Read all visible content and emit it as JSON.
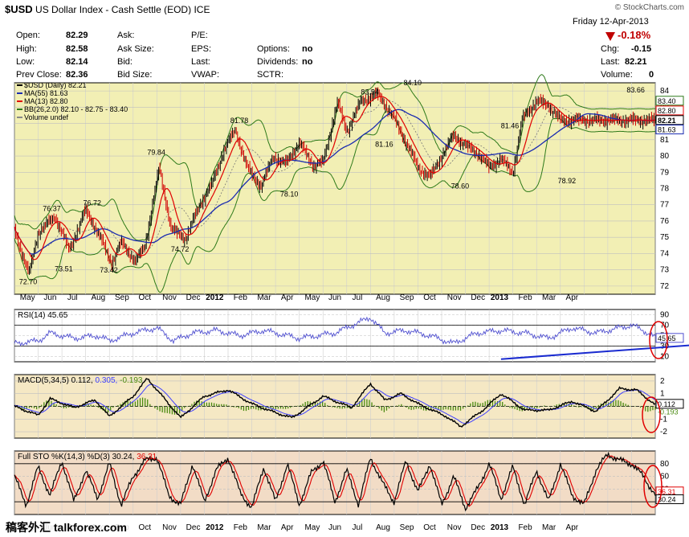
{
  "header": {
    "symbol": "$USD",
    "name": "US Dollar Index - Cash Settle (EOD)",
    "exchange": "ICE",
    "brand": "© StockCharts.com",
    "date": "Friday  12-Apr-2013",
    "change_pct": "-0.18%"
  },
  "quote": {
    "open_label": "Open:",
    "open": "82.29",
    "high_label": "High:",
    "high": "82.58",
    "low_label": "Low:",
    "low": "82.14",
    "prev_label": "Prev Close:",
    "prev": "82.36",
    "ask_label": "Ask:",
    "ask": "",
    "asksize_label": "Ask Size:",
    "asksize": "",
    "bid_label": "Bid:",
    "bid": "",
    "bidsize_label": "Bid Size:",
    "bidsize": "",
    "pe_label": "P/E:",
    "pe": "",
    "eps_label": "EPS:",
    "eps": "",
    "last2_label": "Last:",
    "last2": "",
    "vwap_label": "VWAP:",
    "vwap": "",
    "options_label": "Options:",
    "options": "no",
    "dividends_label": "Dividends:",
    "dividends": "no",
    "sctr_label": "SCTR:",
    "sctr": "",
    "chg_label": "Chg:",
    "chg": "-0.15",
    "last_label": "Last:",
    "last": "82.21",
    "volume_label": "Volume:",
    "volume": "0"
  },
  "watermark": "稿客外汇 talkforex.com",
  "colors": {
    "price_bg": "#f2efb4",
    "rsi_bg": "#ffffff",
    "macd_bg": "#f5e8c4",
    "sto_bg": "#f2dcc6",
    "ma55": "#1a2bb0",
    "ma13": "#e00000",
    "bb": "#2e7a1a",
    "bb_mid": "#777777",
    "bar_up": "#000000",
    "bar_down": "#d00000",
    "rsi": "#5050d0",
    "macd": "#000000",
    "macd_signal": "#4040ff",
    "macd_hist": "#4a8a10",
    "sto_k": "#000000",
    "sto_d": "#e00000",
    "trend": "#1a2bd0",
    "highlight": "#e00000"
  },
  "chart_data": [
    {
      "type": "line",
      "panel": "price",
      "legend": [
        "$USD (Daily) 82.21",
        "MA(55) 81.63",
        "MA(13) 82.80",
        "BB(26,2.0) 82.10 - 82.75 - 83.40",
        "Volume undef"
      ],
      "series_names": [
        "$USD",
        "MA(55)",
        "MA(13)",
        "BB(26,2.0)"
      ],
      "x_labels": [
        "May",
        "Jun",
        "Jul",
        "Aug",
        "Sep",
        "Oct",
        "Nov",
        "Dec",
        "2012",
        "Feb",
        "Mar",
        "Apr",
        "May",
        "Jun",
        "Jul",
        "Aug",
        "Sep",
        "Oct",
        "Nov",
        "Dec",
        "2013",
        "Feb",
        "Mar",
        "Apr"
      ],
      "ylim": [
        71.5,
        84.5
      ],
      "y_ticks": [
        72,
        73,
        74,
        75,
        76,
        77,
        78,
        79,
        80,
        81,
        82,
        83,
        84
      ],
      "anchors": {
        "x": [
          0,
          0.6,
          1,
          1.7,
          2.3,
          3,
          3.6,
          4.1,
          4.5,
          5.1,
          5.5,
          6.1,
          6.6,
          7.2,
          7.8,
          8.3,
          8.8,
          9.3,
          9.8,
          10.4,
          10.9,
          11.4,
          12,
          12.6,
          13,
          13.6,
          14,
          14.6,
          15.3,
          16,
          16.6,
          17,
          17.5,
          18,
          18.5,
          19,
          19.5,
          20,
          20.5,
          21,
          21.4,
          22,
          22.5,
          23,
          23.4
        ],
        "close": [
          75.5,
          72.7,
          75.3,
          76.3,
          74.2,
          76.7,
          75,
          73.4,
          74.7,
          73.5,
          74.5,
          79.3,
          75.5,
          74.9,
          77,
          78.2,
          80.3,
          81.6,
          79.3,
          78.1,
          80,
          79.5,
          80.8,
          79.4,
          79.6,
          83.3,
          81.5,
          83.4,
          83.8,
          82.3,
          80.5,
          79.3,
          78.7,
          80,
          81.3,
          80.6,
          80.2,
          79.3,
          79.8,
          79,
          82.3,
          83.4,
          83.1,
          82.2,
          82.2
        ]
      },
      "annotations": [
        {
          "x": 0.6,
          "text": "72.70",
          "pos": "below"
        },
        {
          "x": 1.6,
          "text": "76.37",
          "pos": "above"
        },
        {
          "x": 2.1,
          "text": "73.51",
          "pos": "below"
        },
        {
          "x": 3.3,
          "text": "76.72",
          "pos": "above"
        },
        {
          "x": 4.0,
          "text": "73.42",
          "pos": "below"
        },
        {
          "x": 6.0,
          "text": "79.84",
          "pos": "above"
        },
        {
          "x": 7.0,
          "text": "74.72",
          "pos": "below"
        },
        {
          "x": 9.5,
          "text": "81.78",
          "pos": "above"
        },
        {
          "x": 11.6,
          "text": "78.10",
          "pos": "below"
        },
        {
          "x": 15.0,
          "text": "83.54",
          "pos": "above"
        },
        {
          "x": 15.6,
          "text": "81.16",
          "pos": "below"
        },
        {
          "x": 16.8,
          "text": "84.10",
          "pos": "above"
        },
        {
          "x": 18.8,
          "text": "78.60",
          "pos": "below"
        },
        {
          "x": 20.9,
          "text": "81.46",
          "pos": "above"
        },
        {
          "x": 23.3,
          "text": "78.92",
          "pos": "below"
        },
        {
          "x": 26.2,
          "text": "83.66",
          "pos": "above"
        }
      ],
      "right_labels": [
        {
          "value": 83.4,
          "text": "83.40"
        },
        {
          "value": 82.8,
          "text": "82.80"
        },
        {
          "value": 82.21,
          "text": "82.21"
        },
        {
          "value": 81.63,
          "text": "81.63"
        }
      ]
    },
    {
      "type": "line",
      "panel": "rsi",
      "legend": "RSI(14) 45.65",
      "series_names": [
        "RSI(14)"
      ],
      "ylim": [
        0,
        100
      ],
      "y_ticks": [
        10,
        30,
        50,
        70,
        90
      ],
      "current": "45.65",
      "anchors": {
        "x": [
          0,
          1,
          1.5,
          2.5,
          3.5,
          4,
          5,
          6,
          6.7,
          7.5,
          8.5,
          9.5,
          10.5,
          12,
          13.5,
          15,
          15.6,
          16.5,
          17.5,
          18.5,
          19.5,
          20.5,
          21.5,
          22.5,
          23.5,
          24.5,
          25.5,
          26,
          26.5,
          27
        ],
        "value": [
          35,
          40,
          55,
          45,
          50,
          40,
          55,
          65,
          40,
          55,
          60,
          50,
          60,
          45,
          55,
          85,
          55,
          60,
          50,
          35,
          55,
          60,
          55,
          45,
          65,
          55,
          65,
          70,
          60,
          45.65
        ]
      }
    },
    {
      "type": "line",
      "panel": "macd",
      "legend": "MACD(5,34,5) 0.112, 0.305, -0.193",
      "series_names": [
        "MACD(5,34,5)",
        "signal",
        "histogram"
      ],
      "values_text": [
        "0.112",
        "0.305",
        "-0.193"
      ],
      "ylim": [
        -2.5,
        2.5
      ],
      "y_ticks": [
        -2,
        -1,
        0,
        1,
        2
      ],
      "anchors": {
        "x": [
          0,
          1,
          1.5,
          2.5,
          3.4,
          4,
          5,
          5.6,
          6.5,
          7,
          8,
          9,
          10,
          11,
          11.7,
          13,
          14.2,
          15,
          15.6,
          16.3,
          17,
          18.2,
          18.8,
          19.8,
          20.5,
          21.5,
          22.5,
          23.5,
          24.5,
          25.5,
          26.2,
          27
        ],
        "macd": [
          0,
          -0.7,
          0.6,
          -0.1,
          0.5,
          -0.8,
          0.8,
          2.2,
          0.2,
          -0.9,
          0.8,
          1.3,
          0.2,
          -0.5,
          -0.9,
          0.8,
          -0.1,
          1.8,
          0.5,
          1,
          0.2,
          -0.8,
          -1.6,
          -0.2,
          1,
          -0.3,
          -0.3,
          0.4,
          -0.4,
          1.4,
          1.3,
          0.112
        ]
      }
    },
    {
      "type": "line",
      "panel": "sto",
      "legend": "Full STO %K(14,3) %D(3) 30.24, 36.31",
      "series_names": [
        "%K(14,3)",
        "%D(3)"
      ],
      "values_text": [
        "30.24",
        "36.31"
      ],
      "ylim": [
        0,
        100
      ],
      "y_ticks": [
        20,
        40,
        60,
        80
      ],
      "current_k": "30.24",
      "current_d": "36.31",
      "anchors": {
        "x": [
          0,
          0.5,
          1,
          1.5,
          2,
          2.5,
          3,
          3.5,
          4,
          4.5,
          5,
          5.5,
          6,
          6.5,
          7,
          7.5,
          8,
          8.5,
          9,
          9.5,
          10,
          10.5,
          11,
          11.5,
          12,
          12.5,
          13,
          13.5,
          14,
          14.5,
          15,
          15.5,
          16,
          16.5,
          17,
          17.5,
          18,
          18.5,
          19,
          19.5,
          20,
          20.5,
          21,
          21.5,
          22,
          22.5,
          23,
          23.5,
          24,
          24.5,
          25,
          25.5,
          26,
          26.5,
          27
        ],
        "k": [
          60,
          15,
          75,
          30,
          85,
          20,
          70,
          25,
          80,
          15,
          60,
          85,
          90,
          30,
          15,
          80,
          20,
          70,
          90,
          35,
          10,
          75,
          20,
          80,
          15,
          65,
          85,
          20,
          70,
          15,
          90,
          50,
          20,
          85,
          35,
          80,
          15,
          60,
          10,
          40,
          80,
          25,
          75,
          15,
          70,
          20,
          80,
          30,
          15,
          70,
          95,
          85,
          80,
          60,
          30.24
        ]
      }
    }
  ]
}
